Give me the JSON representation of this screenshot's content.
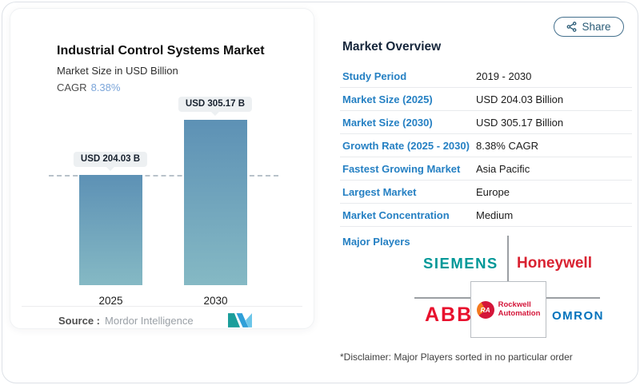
{
  "share": {
    "label": "Share"
  },
  "card": {
    "title": "Industrial Control Systems Market",
    "subtitle": "Market Size in USD Billion",
    "cagr_label": "CAGR",
    "cagr_value": "8.38%",
    "source_label": "Source :",
    "source_value": "Mordor Intelligence"
  },
  "chart_data": {
    "type": "bar",
    "categories": [
      "2025",
      "2030"
    ],
    "values": [
      204.03,
      305.17
    ],
    "value_labels": [
      "USD 204.03 B",
      "USD 305.17 B"
    ],
    "title": "Industrial Control Systems Market",
    "ylabel": "Market Size in USD Billion",
    "reference_line_value": 204.03,
    "grid": false,
    "legend": false,
    "bar_gradient": [
      "#5d91b5",
      "#85b9c4"
    ]
  },
  "overview": {
    "title": "Market Overview",
    "rows": [
      {
        "label": "Study Period",
        "value": "2019 - 2030"
      },
      {
        "label": "Market Size (2025)",
        "value": "USD 204.03 Billion"
      },
      {
        "label": "Market Size (2030)",
        "value": "USD 305.17 Billion"
      },
      {
        "label": "Growth Rate (2025 - 2030)",
        "value": "8.38% CAGR"
      },
      {
        "label": "Fastest Growing Market",
        "value": "Asia Pacific"
      },
      {
        "label": "Largest Market",
        "value": "Europe"
      },
      {
        "label": "Market Concentration",
        "value": "Medium"
      }
    ]
  },
  "major_players": {
    "label": "Major Players",
    "siemens": "SIEMENS",
    "honeywell": "Honeywell",
    "abb": "ABB",
    "rockwell_monogram": "RA",
    "rockwell_line1": "Rockwell",
    "rockwell_line2": "Automation",
    "omron": "OMRON"
  },
  "disclaimer": "*Disclaimer: Major Players sorted in no particular order",
  "colors": {
    "row_label_blue": "#2580C3",
    "heading_navy": "#16263B",
    "cagr_blue": "#7CA6DA",
    "bar_top": "#5D91B5",
    "bar_bottom": "#85B9C4",
    "siemens": "#009898",
    "honeywell": "#D92231",
    "abb": "#E8112D",
    "rockwell": "#D41539",
    "omron": "#0072BC",
    "share_border": "#44708D"
  }
}
